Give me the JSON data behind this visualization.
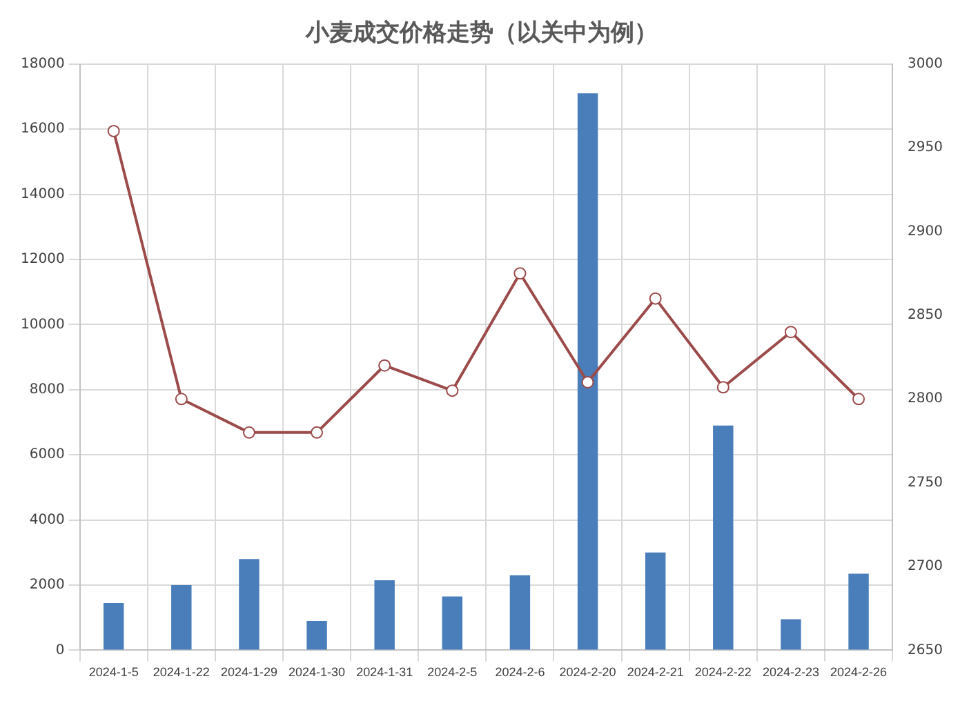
{
  "chart_data": {
    "type": "bar",
    "title": "小麦成交价格走势（以关中为例）",
    "categories": [
      "2024-1-5",
      "2024-1-22",
      "2024-1-29",
      "2024-1-30",
      "2024-1-31",
      "2024-2-5",
      "2024-2-6",
      "2024-2-20",
      "2024-2-21",
      "2024-2-22",
      "2024-2-23",
      "2024-2-26"
    ],
    "series": [
      {
        "color": "#4a7ebb",
        "values": [
          1450,
          2000,
          2800,
          900,
          2150,
          1650,
          2300,
          17100,
          3000,
          6900,
          950,
          2350
        ]
      },
      {
        "type": "line",
        "axis": "y2",
        "color": "#9c4a4a",
        "marker": "circle",
        "values": [
          2960,
          2800,
          2780,
          2780,
          2820,
          2805,
          2875,
          2810,
          2860,
          2807,
          2840,
          2800
        ]
      }
    ],
    "ylim": [
      0,
      18000
    ],
    "yticks": [
      0,
      2000,
      4000,
      6000,
      8000,
      10000,
      12000,
      14000,
      16000,
      18000
    ],
    "y2lim": [
      2650,
      3000
    ],
    "y2ticks": [
      2650,
      2700,
      2750,
      2800,
      2850,
      2900,
      2950,
      3000
    ],
    "grid": true,
    "legend": false
  }
}
